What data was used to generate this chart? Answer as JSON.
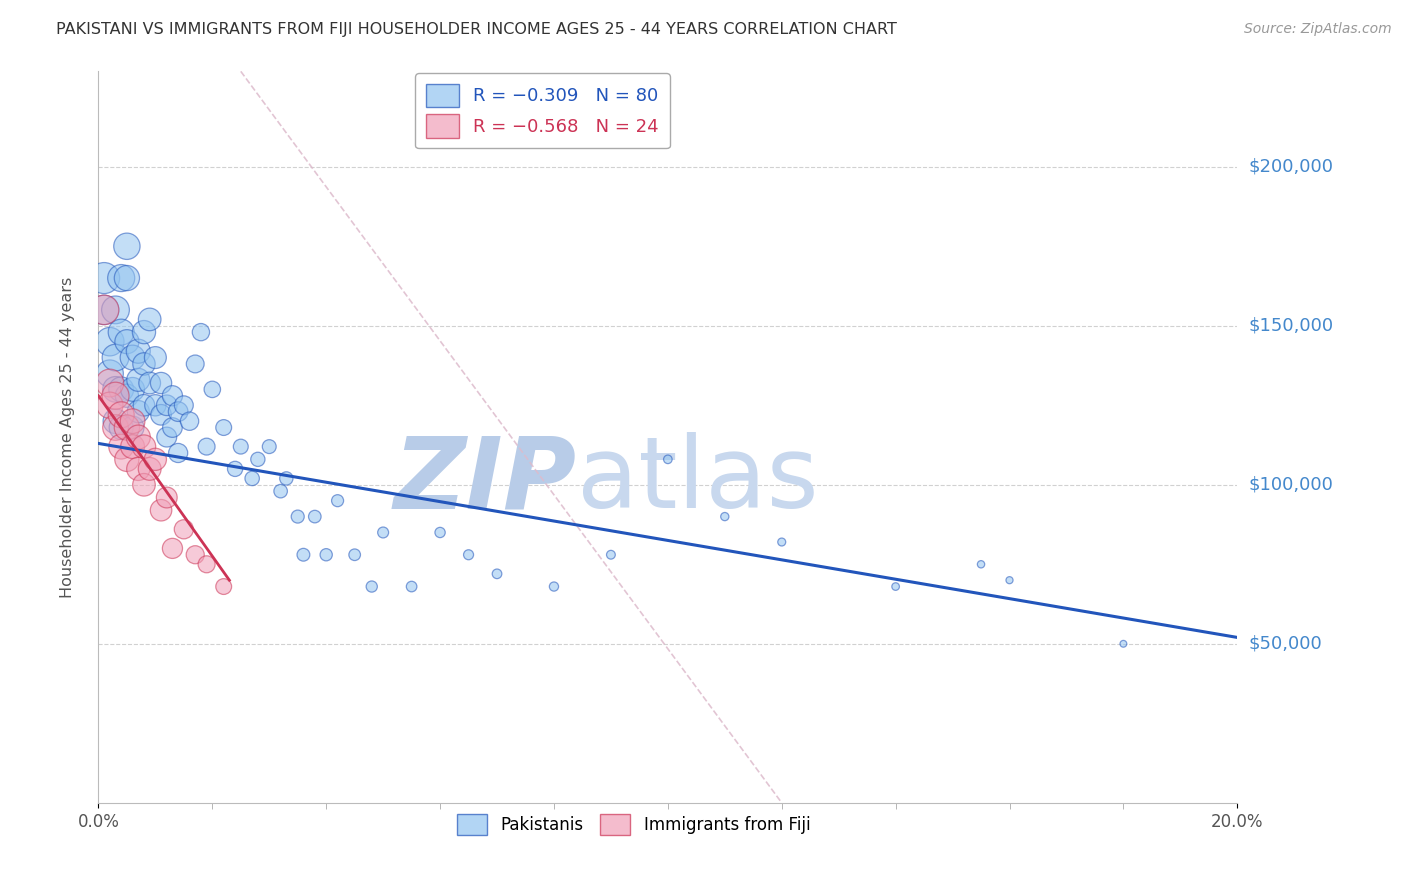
{
  "title": "PAKISTANI VS IMMIGRANTS FROM FIJI HOUSEHOLDER INCOME AGES 25 - 44 YEARS CORRELATION CHART",
  "source": "Source: ZipAtlas.com",
  "ylabel": "Householder Income Ages 25 - 44 years",
  "ytick_labels": [
    "$50,000",
    "$100,000",
    "$150,000",
    "$200,000"
  ],
  "ytick_values": [
    50000,
    100000,
    150000,
    200000
  ],
  "xlim": [
    0.0,
    0.2
  ],
  "ylim": [
    0,
    230000
  ],
  "watermark_zip": "ZIP",
  "watermark_atlas": "atlas",
  "blue_scatter": {
    "x": [
      0.001,
      0.001,
      0.002,
      0.002,
      0.003,
      0.003,
      0.003,
      0.003,
      0.004,
      0.004,
      0.004,
      0.004,
      0.005,
      0.005,
      0.005,
      0.005,
      0.006,
      0.006,
      0.006,
      0.007,
      0.007,
      0.007,
      0.008,
      0.008,
      0.008,
      0.009,
      0.009,
      0.01,
      0.01,
      0.011,
      0.011,
      0.012,
      0.012,
      0.013,
      0.013,
      0.014,
      0.014,
      0.015,
      0.016,
      0.017,
      0.018,
      0.019,
      0.02,
      0.022,
      0.024,
      0.025,
      0.027,
      0.028,
      0.03,
      0.032,
      0.033,
      0.035,
      0.036,
      0.038,
      0.04,
      0.042,
      0.045,
      0.048,
      0.05,
      0.055,
      0.06,
      0.065,
      0.07,
      0.08,
      0.09,
      0.1,
      0.11,
      0.12,
      0.14,
      0.155,
      0.16,
      0.18
    ],
    "y": [
      165000,
      155000,
      145000,
      135000,
      155000,
      140000,
      130000,
      120000,
      165000,
      148000,
      130000,
      118000,
      175000,
      165000,
      145000,
      128000,
      140000,
      130000,
      118000,
      142000,
      133000,
      123000,
      148000,
      138000,
      125000,
      152000,
      132000,
      140000,
      125000,
      132000,
      122000,
      125000,
      115000,
      128000,
      118000,
      123000,
      110000,
      125000,
      120000,
      138000,
      148000,
      112000,
      130000,
      118000,
      105000,
      112000,
      102000,
      108000,
      112000,
      98000,
      102000,
      90000,
      78000,
      90000,
      78000,
      95000,
      78000,
      68000,
      85000,
      68000,
      85000,
      78000,
      72000,
      68000,
      78000,
      108000,
      90000,
      82000,
      68000,
      75000,
      70000,
      50000
    ],
    "sizes": [
      500,
      450,
      420,
      380,
      400,
      370,
      340,
      320,
      380,
      350,
      320,
      300,
      360,
      330,
      300,
      280,
      320,
      295,
      270,
      300,
      275,
      255,
      280,
      260,
      240,
      265,
      245,
      250,
      235,
      235,
      220,
      220,
      205,
      210,
      200,
      200,
      190,
      185,
      175,
      165,
      155,
      148,
      140,
      130,
      120,
      115,
      108,
      105,
      100,
      95,
      92,
      88,
      85,
      82,
      78,
      75,
      70,
      65,
      62,
      58,
      55,
      52,
      48,
      44,
      40,
      38,
      35,
      33,
      30,
      28,
      26,
      24
    ]
  },
  "pink_scatter": {
    "x": [
      0.001,
      0.002,
      0.002,
      0.003,
      0.003,
      0.004,
      0.004,
      0.005,
      0.005,
      0.006,
      0.006,
      0.007,
      0.007,
      0.008,
      0.008,
      0.009,
      0.01,
      0.011,
      0.012,
      0.013,
      0.015,
      0.017,
      0.019,
      0.022
    ],
    "y": [
      155000,
      132000,
      125000,
      128000,
      118000,
      122000,
      112000,
      118000,
      108000,
      120000,
      112000,
      115000,
      105000,
      112000,
      100000,
      105000,
      108000,
      92000,
      96000,
      80000,
      86000,
      78000,
      75000,
      68000
    ],
    "sizes": [
      450,
      400,
      360,
      380,
      340,
      350,
      320,
      330,
      305,
      315,
      295,
      300,
      280,
      285,
      265,
      270,
      255,
      240,
      225,
      210,
      190,
      170,
      150,
      130
    ]
  },
  "blue_line_x": [
    0.0,
    0.2
  ],
  "blue_line_y": [
    113000,
    52000
  ],
  "pink_line_x": [
    0.0,
    0.023
  ],
  "pink_line_y": [
    128000,
    70000
  ],
  "ref_line_x": [
    0.025,
    0.12
  ],
  "ref_line_y": [
    230000,
    0
  ],
  "blue_color": "#92c4f0",
  "pink_color": "#f0a0b8",
  "blue_line_color": "#2255bb",
  "pink_line_color": "#cc3355",
  "ref_line_color": "#ddbbcc",
  "title_color": "#333333",
  "source_color": "#999999",
  "ytick_color": "#4488cc",
  "xtick_color": "#555555",
  "watermark_color_zip": "#b8cce8",
  "watermark_color_atlas": "#c8d8ee"
}
